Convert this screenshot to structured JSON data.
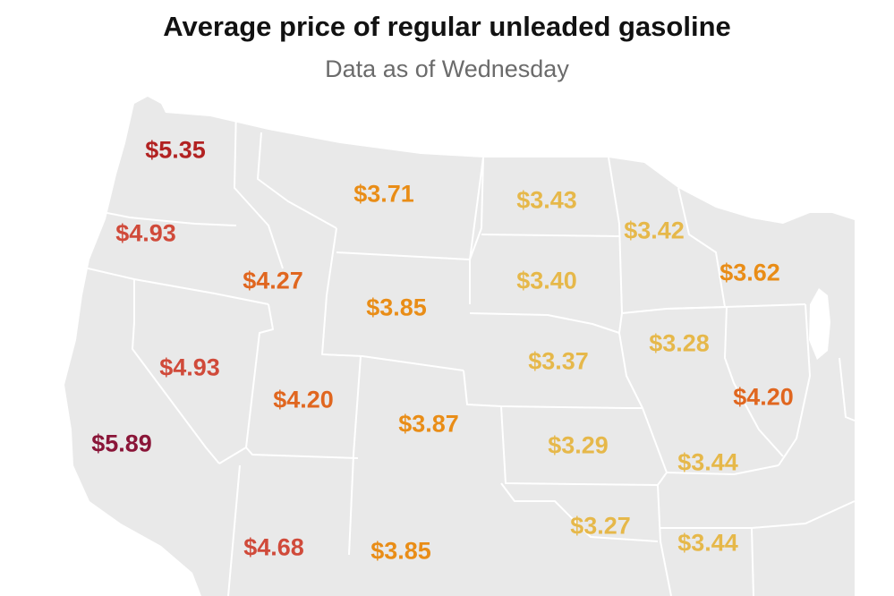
{
  "header": {
    "title": "Average price of regular unleaded gasoline",
    "subtitle": "Data as of Wednesday"
  },
  "legend_colors": {
    "over_5_50": "#8a1538",
    "from_5_00": "#b22222",
    "from_4_50": "#d04a3a",
    "from_4_00": "#e0661f",
    "from_3_60": "#e98d17",
    "under_3_60": "#e6b84a"
  },
  "states": [
    {
      "id": "WA",
      "price": "$5.35",
      "color": "#b22222"
    },
    {
      "id": "OR",
      "price": "$4.93",
      "color": "#d04a3a"
    },
    {
      "id": "CA",
      "price": "$5.89",
      "color": "#8a1538"
    },
    {
      "id": "NV",
      "price": "$4.93",
      "color": "#d04a3a"
    },
    {
      "id": "ID",
      "price": "$4.27",
      "color": "#e0661f"
    },
    {
      "id": "MT",
      "price": "$3.71",
      "color": "#e98d17"
    },
    {
      "id": "WY",
      "price": "$3.85",
      "color": "#e98d17"
    },
    {
      "id": "UT",
      "price": "$4.20",
      "color": "#e0661f"
    },
    {
      "id": "AZ",
      "price": "$4.68",
      "color": "#d04a3a"
    },
    {
      "id": "CO",
      "price": "$3.87",
      "color": "#e98d17"
    },
    {
      "id": "NM",
      "price": "$3.85",
      "color": "#e98d17"
    },
    {
      "id": "ND",
      "price": "$3.43",
      "color": "#e6b84a"
    },
    {
      "id": "SD",
      "price": "$3.40",
      "color": "#e6b84a"
    },
    {
      "id": "NE",
      "price": "$3.37",
      "color": "#e6b84a"
    },
    {
      "id": "KS",
      "price": "$3.29",
      "color": "#e6b84a"
    },
    {
      "id": "OK",
      "price": "$3.27",
      "color": "#e6b84a"
    },
    {
      "id": "MN",
      "price": "$3.42",
      "color": "#e6b84a"
    },
    {
      "id": "IA",
      "price": "$3.28",
      "color": "#e6b84a"
    },
    {
      "id": "MO",
      "price": "$3.44",
      "color": "#e6b84a"
    },
    {
      "id": "AR",
      "price": "$3.44",
      "color": "#e6b84a"
    },
    {
      "id": "WI",
      "price": "$3.62",
      "color": "#e98d17"
    },
    {
      "id": "IL",
      "price": "$4.20",
      "color": "#e0661f"
    }
  ]
}
